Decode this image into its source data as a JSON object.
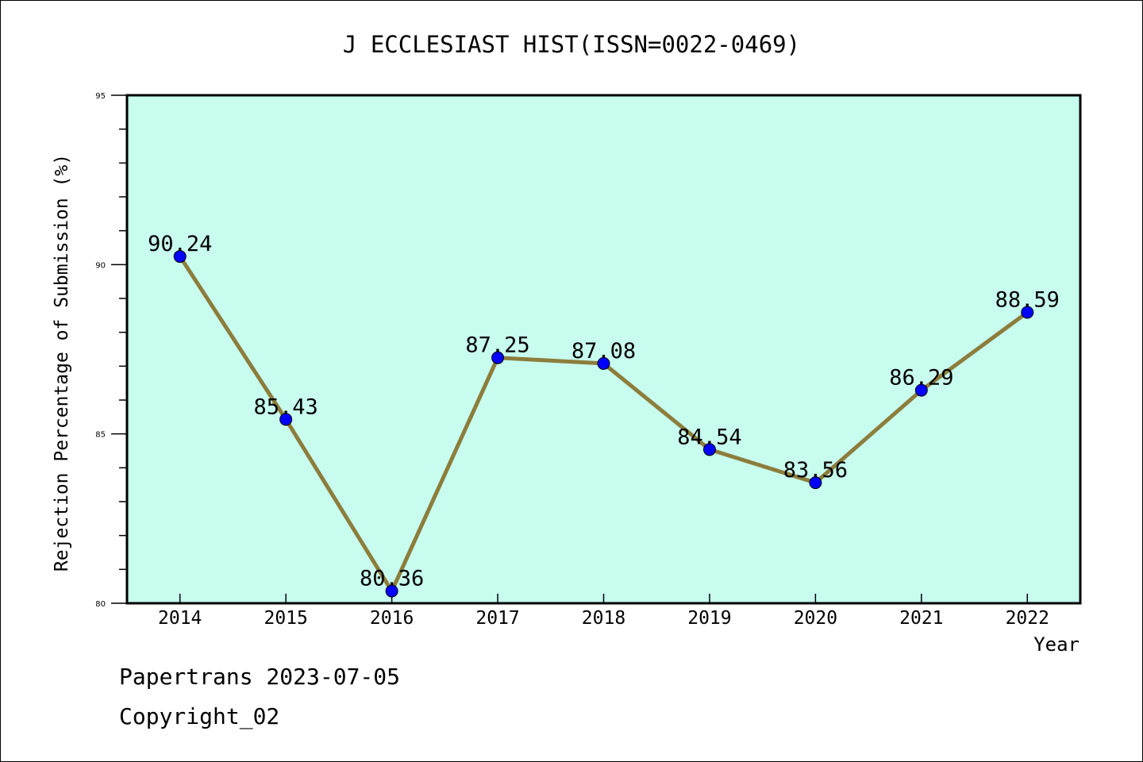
{
  "chart_data": {
    "type": "line",
    "title": "J ECCLESIAST HIST(ISSN=0022-0469)",
    "xlabel": "Year",
    "ylabel": "Rejection Percentage of Submission (%)",
    "categories": [
      "2014",
      "2015",
      "2016",
      "2017",
      "2018",
      "2019",
      "2020",
      "2021",
      "2022"
    ],
    "values": [
      90.24,
      85.43,
      80.36,
      87.25,
      87.08,
      84.54,
      83.56,
      86.29,
      88.59
    ],
    "value_labels": [
      "90.24",
      "85.43",
      "80.36",
      "87.25",
      "87.08",
      "84.54",
      "83.56",
      "86.29",
      "88.59"
    ],
    "ylim": [
      80,
      95
    ],
    "yticks": [
      "80",
      "85",
      "90",
      "95"
    ],
    "grid": false,
    "colors": {
      "background": "#c8fcee",
      "line": "#8c7d3c",
      "marker": "#0000ff"
    }
  },
  "footer": {
    "line1": "Papertrans 2023-07-05",
    "line2": "Copyright_02"
  }
}
